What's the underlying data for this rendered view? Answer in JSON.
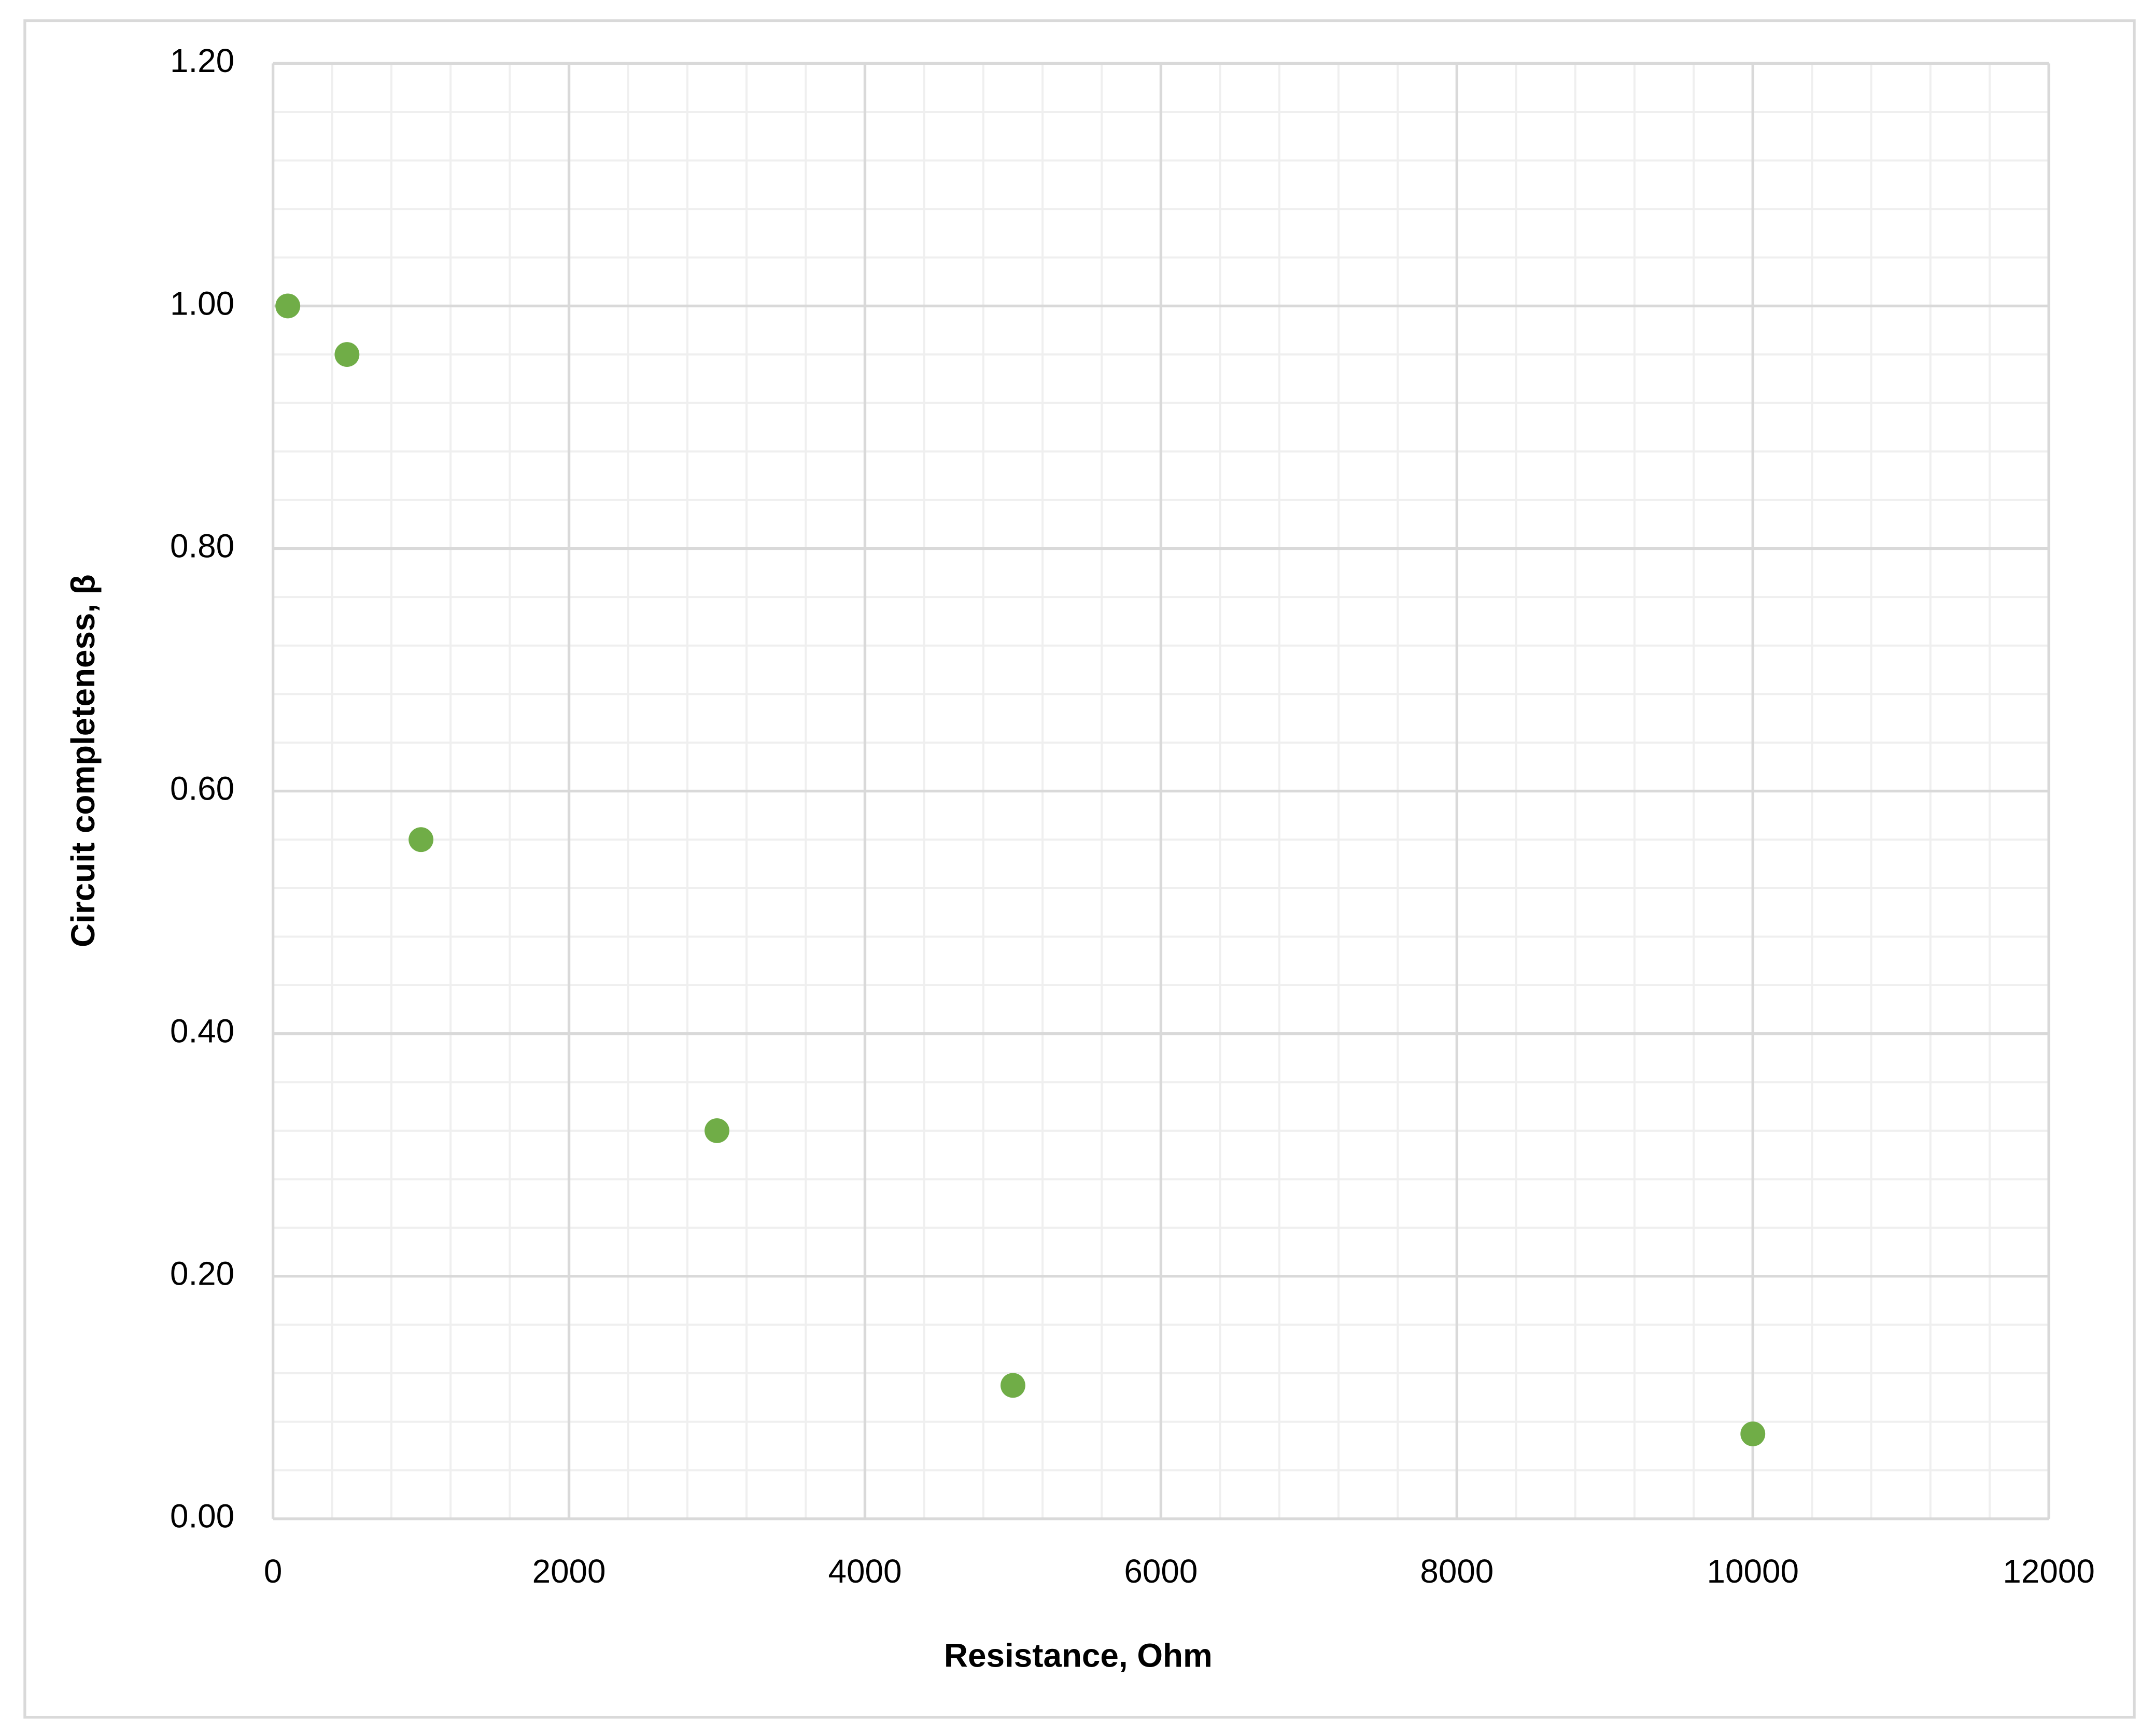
{
  "chart_data": {
    "type": "scatter",
    "x_label": "Resistance, Ohm",
    "y_label": "Circuit completeness, β",
    "x": [
      100,
      500,
      1000,
      3000,
      5000,
      10000
    ],
    "series": [
      {
        "color": "#70ad47",
        "values": [
          1.0,
          0.96,
          0.56,
          0.32,
          0.11,
          0.07
        ]
      }
    ],
    "xlim": [
      0,
      12000
    ],
    "xticks": [
      0,
      2000,
      4000,
      6000,
      8000,
      10000,
      12000
    ],
    "ylim": [
      0,
      1.2
    ],
    "yticks": [
      {
        "value": 0,
        "label": "0.00"
      },
      {
        "value": 0.2,
        "label": "0.20"
      },
      {
        "value": 0.4,
        "label": "0.40"
      },
      {
        "value": 0.6,
        "label": "0.60"
      },
      {
        "value": 0.8,
        "label": "0.80"
      },
      {
        "value": 1.0,
        "label": "1.00"
      },
      {
        "value": 1.2,
        "label": "1.20"
      }
    ],
    "grid": true,
    "minor_grid": true
  }
}
